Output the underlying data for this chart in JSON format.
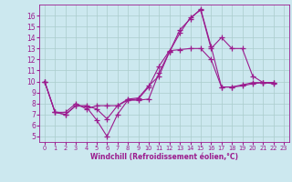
{
  "background_color": "#cce8ef",
  "line_color": "#9b1b8e",
  "grid_color": "#aacccc",
  "xlabel": "Windchill (Refroidissement éolien,°C)",
  "xlim": [
    -0.5,
    23.5
  ],
  "ylim": [
    4.5,
    17
  ],
  "xticks": [
    0,
    1,
    2,
    3,
    4,
    5,
    6,
    7,
    8,
    9,
    10,
    11,
    12,
    13,
    14,
    15,
    16,
    17,
    18,
    19,
    20,
    21,
    22,
    23
  ],
  "yticks": [
    5,
    6,
    7,
    8,
    9,
    10,
    11,
    12,
    13,
    14,
    15,
    16
  ],
  "series": [
    {
      "x": [
        0,
        1,
        2,
        3,
        4,
        5,
        6,
        7,
        8,
        9,
        10,
        11,
        12,
        13,
        14,
        15,
        16,
        17,
        18,
        19,
        20,
        21,
        22
      ],
      "y": [
        10.0,
        7.2,
        7.0,
        7.8,
        7.7,
        6.5,
        5.0,
        7.0,
        8.3,
        8.3,
        8.4,
        10.8,
        12.7,
        14.4,
        15.8,
        16.5,
        13.0,
        14.0,
        13.0,
        13.0,
        10.5,
        9.9,
        9.8
      ]
    },
    {
      "x": [
        0,
        1,
        2,
        3,
        4,
        5,
        6,
        7,
        8,
        9,
        10,
        11,
        12,
        13,
        14,
        15,
        16,
        17,
        18,
        19,
        20,
        21,
        22
      ],
      "y": [
        10.0,
        7.2,
        7.0,
        7.8,
        7.8,
        7.5,
        6.6,
        7.8,
        8.4,
        8.5,
        9.6,
        10.5,
        12.7,
        14.7,
        15.7,
        16.6,
        13.2,
        9.5,
        9.5,
        9.7,
        9.9,
        9.9,
        9.9
      ]
    },
    {
      "x": [
        0,
        1,
        2,
        3,
        4,
        5,
        6,
        7,
        8,
        9,
        10,
        11,
        12,
        13,
        14,
        15,
        16,
        17,
        18,
        19,
        20,
        21,
        22
      ],
      "y": [
        10.0,
        7.2,
        7.2,
        8.0,
        7.5,
        7.8,
        7.8,
        7.8,
        8.3,
        8.4,
        9.5,
        11.4,
        12.8,
        12.9,
        13.0,
        13.0,
        12.0,
        9.5,
        9.5,
        9.6,
        9.8,
        9.9,
        9.9
      ]
    }
  ]
}
